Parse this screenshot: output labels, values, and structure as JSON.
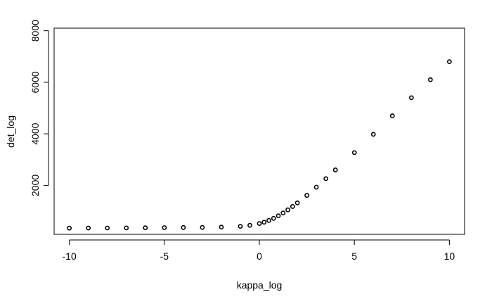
{
  "chart_data": {
    "type": "scatter",
    "title": "",
    "xlabel": "kappa_log",
    "ylabel": "det_log",
    "xlim": [
      -10.8,
      10.8
    ],
    "ylim": [
      100,
      8100
    ],
    "x_ticks": [
      -10,
      -5,
      0,
      5,
      10
    ],
    "y_ticks": [
      2000,
      4000,
      6000,
      8000
    ],
    "x_tick_labels": [
      "-10",
      "-5",
      "0",
      "5",
      "10"
    ],
    "y_tick_labels": [
      "2000",
      "4000",
      "6000",
      "8000"
    ],
    "grid": false,
    "legend": "none",
    "marker": "open-circle",
    "marker_color": "#000000",
    "series": [
      {
        "x": [
          -10,
          -9,
          -8,
          -7,
          -6,
          -5,
          -4,
          -3,
          -2,
          -1,
          -0.5,
          0,
          0.25,
          0.5,
          0.75,
          1,
          1.25,
          1.5,
          1.75,
          2,
          2.5,
          3,
          3.5,
          4,
          5,
          6,
          7,
          8,
          9,
          10
        ],
        "values": [
          340,
          342,
          345,
          350,
          355,
          360,
          365,
          370,
          380,
          410,
          450,
          520,
          570,
          640,
          720,
          820,
          930,
          1050,
          1180,
          1320,
          1610,
          1930,
          2260,
          2600,
          3270,
          3980,
          4700,
          5400,
          6100,
          6800
        ]
      }
    ]
  }
}
